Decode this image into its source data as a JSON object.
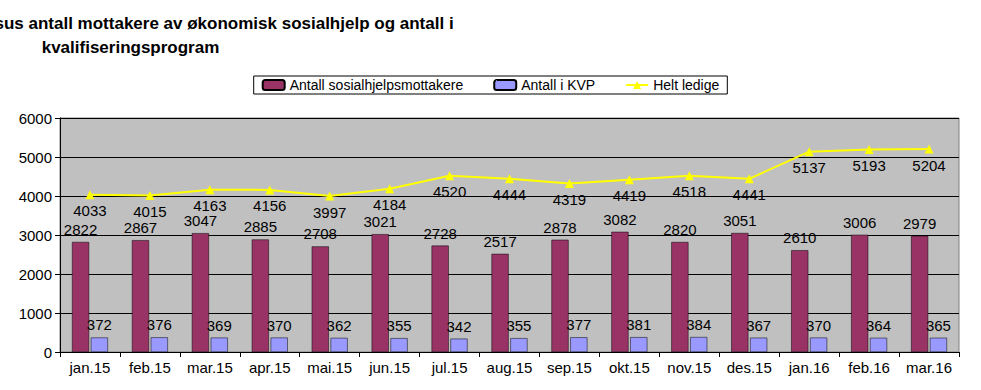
{
  "chart_data": {
    "type": "bar",
    "title": "Antall arbeidsledige versus antall mottakere av økonomisk sosialhjelp og antall i kvalifiseringsprogram",
    "categories": [
      "jan.15",
      "feb.15",
      "mar.15",
      "apr.15",
      "mai.15",
      "jun.15",
      "jul.15",
      "aug.15",
      "sep.15",
      "okt.15",
      "nov.15",
      "des.15",
      "jan.16",
      "feb.16",
      "mar.16"
    ],
    "series": [
      {
        "name": "Antall sosialhjelpsmottakere",
        "type": "bar",
        "color": "#993366",
        "values": [
          2822,
          2867,
          3047,
          2885,
          2708,
          3021,
          2728,
          2517,
          2878,
          3082,
          2820,
          3051,
          2610,
          3006,
          2979
        ]
      },
      {
        "name": "Antall i KVP",
        "type": "bar",
        "color": "#9999ff",
        "values": [
          372,
          376,
          369,
          370,
          362,
          355,
          342,
          355,
          377,
          381,
          384,
          367,
          370,
          364,
          365
        ]
      },
      {
        "name": "Helt ledige",
        "type": "line",
        "color": "#ffff00",
        "marker": "triangle",
        "values": [
          4033,
          4015,
          4163,
          4156,
          3997,
          4184,
          4520,
          4444,
          4319,
          4419,
          4518,
          4441,
          5137,
          5193,
          5204
        ]
      }
    ],
    "ylim": [
      0,
      6000
    ],
    "yticks": [
      0,
      1000,
      2000,
      3000,
      4000,
      5000,
      6000
    ],
    "grid": true,
    "legend": "top",
    "data_labels": true
  }
}
